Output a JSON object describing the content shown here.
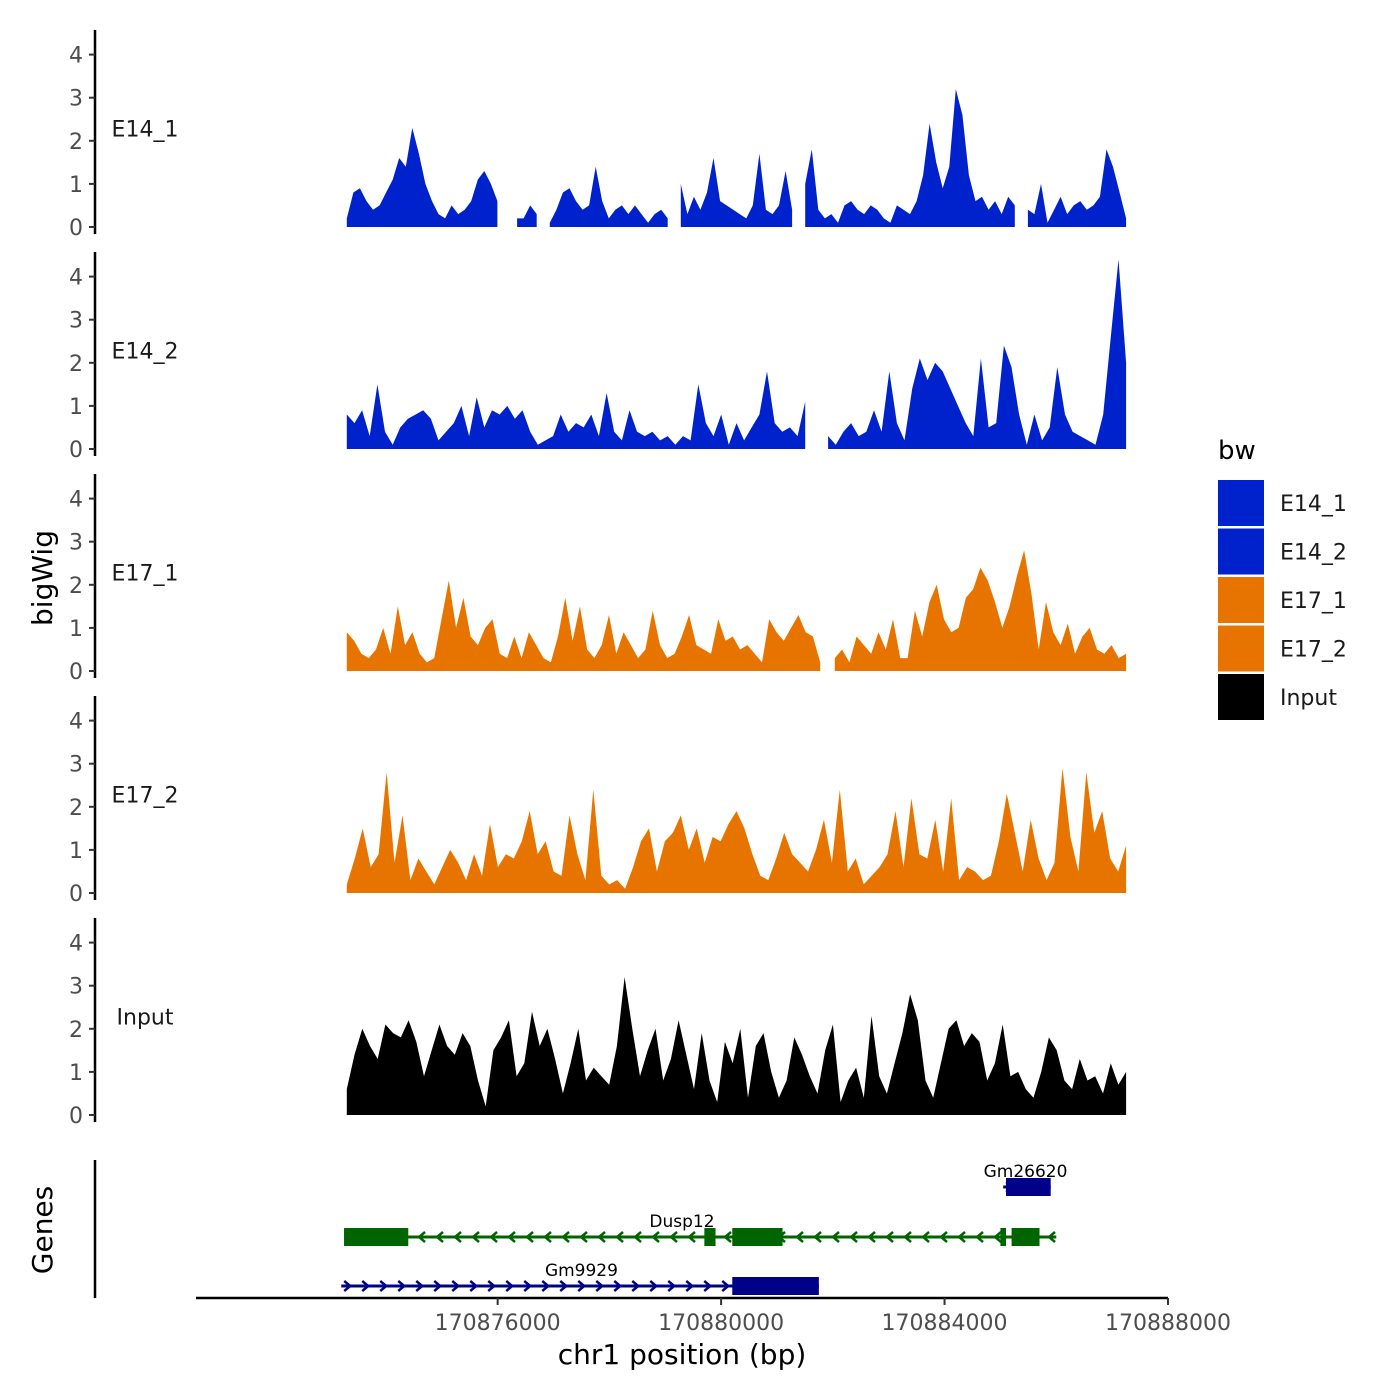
{
  "chart_data": {
    "type": "area",
    "title": "",
    "xlabel": "chr1 position (bp)",
    "ylabel": "bigWig",
    "genes_label": "Genes",
    "xlim": [
      170870600,
      170888000
    ],
    "ylim": [
      0,
      4.5
    ],
    "x_ticks": [
      170876000,
      170880000,
      170884000,
      170888000
    ],
    "x_tick_labels": [
      "170876000",
      "170880000",
      "170884000",
      "170888000"
    ],
    "y_ticks": [
      0,
      1,
      2,
      3,
      4
    ],
    "y_tick_labels": [
      "0",
      "1",
      "2",
      "3",
      "4"
    ],
    "x_start": 170873300,
    "x_end": 170887250,
    "legend": {
      "title": "bw",
      "position": "right",
      "entries": [
        {
          "label": "E14_1",
          "color": "#0022CC"
        },
        {
          "label": "E14_2",
          "color": "#0022CC"
        },
        {
          "label": "E17_1",
          "color": "#E87400"
        },
        {
          "label": "E17_2",
          "color": "#E87400"
        },
        {
          "label": "Input",
          "color": "#000000"
        }
      ]
    },
    "series": [
      {
        "name": "E14_1",
        "color": "#0022CC",
        "values": [
          0.2,
          0.8,
          0.9,
          0.6,
          0.4,
          0.5,
          0.8,
          1.1,
          1.6,
          1.4,
          2.3,
          1.7,
          1.0,
          0.6,
          0.3,
          0.2,
          0.5,
          0.3,
          0.4,
          0.6,
          1.1,
          1.3,
          1.0,
          0.6,
          null,
          null,
          0.2,
          0.2,
          0.5,
          0.3,
          null,
          0.1,
          0.4,
          0.8,
          0.9,
          0.6,
          0.4,
          0.5,
          1.4,
          0.6,
          0.2,
          0.4,
          0.5,
          0.3,
          0.5,
          0.3,
          0.1,
          0.3,
          0.4,
          0.2,
          null,
          1.0,
          0.3,
          0.7,
          0.4,
          0.8,
          1.6,
          0.6,
          0.5,
          0.4,
          0.3,
          0.2,
          0.5,
          1.7,
          0.4,
          0.3,
          0.5,
          1.3,
          0.4,
          null,
          1.0,
          1.8,
          0.4,
          0.2,
          0.3,
          0.1,
          0.5,
          0.6,
          0.4,
          0.3,
          0.5,
          0.4,
          0.2,
          0.1,
          0.5,
          0.4,
          0.3,
          0.6,
          1.2,
          2.4,
          1.5,
          0.9,
          1.4,
          3.2,
          2.6,
          1.2,
          0.6,
          0.7,
          0.4,
          0.6,
          0.3,
          0.7,
          0.5,
          null,
          0.4,
          0.3,
          1.0,
          0.1,
          0.4,
          0.7,
          0.3,
          0.5,
          0.6,
          0.4,
          0.5,
          0.7,
          1.8,
          1.4,
          0.8,
          0.2
        ]
      },
      {
        "name": "E14_2",
        "color": "#0022CC",
        "values": [
          0.8,
          0.6,
          0.9,
          0.3,
          1.5,
          0.4,
          0.1,
          0.5,
          0.7,
          0.8,
          0.9,
          0.7,
          0.2,
          0.4,
          0.6,
          1.0,
          0.3,
          1.2,
          0.5,
          0.9,
          0.8,
          1.0,
          0.7,
          0.9,
          0.4,
          0.1,
          0.2,
          0.3,
          0.8,
          0.4,
          0.6,
          0.5,
          0.8,
          0.3,
          1.3,
          0.4,
          0.2,
          0.9,
          0.4,
          0.3,
          0.4,
          0.2,
          0.3,
          0.1,
          0.3,
          0.2,
          1.5,
          0.6,
          0.3,
          0.8,
          0.1,
          0.6,
          0.2,
          0.5,
          0.8,
          1.8,
          0.6,
          0.4,
          0.5,
          0.3,
          1.1,
          null,
          null,
          0.3,
          0.1,
          0.4,
          0.6,
          0.3,
          0.4,
          0.9,
          0.4,
          1.8,
          0.6,
          0.2,
          1.4,
          2.1,
          1.6,
          2.0,
          1.8,
          1.4,
          1.0,
          0.6,
          0.3,
          2.1,
          0.5,
          0.6,
          2.4,
          1.9,
          0.8,
          0.1,
          0.8,
          0.2,
          0.5,
          1.9,
          0.8,
          0.4,
          0.3,
          0.2,
          0.1,
          0.8,
          2.6,
          4.4,
          2.0
        ]
      },
      {
        "name": "E17_1",
        "color": "#E87400",
        "values": [
          0.9,
          0.7,
          0.4,
          0.3,
          0.5,
          1.0,
          0.4,
          1.5,
          0.6,
          0.9,
          0.4,
          0.2,
          0.3,
          1.2,
          2.1,
          1.0,
          1.7,
          0.8,
          0.6,
          1.0,
          1.2,
          0.4,
          0.3,
          0.8,
          0.3,
          0.9,
          0.6,
          0.3,
          0.2,
          0.8,
          1.7,
          0.7,
          1.5,
          0.5,
          0.3,
          0.6,
          1.3,
          0.4,
          0.9,
          0.6,
          0.3,
          0.5,
          1.4,
          0.6,
          0.3,
          0.4,
          0.8,
          1.3,
          0.6,
          0.5,
          0.4,
          1.2,
          0.7,
          0.8,
          0.5,
          0.6,
          0.4,
          0.2,
          1.2,
          0.9,
          0.7,
          1.0,
          1.3,
          0.9,
          0.8,
          0.2,
          null,
          0.3,
          0.5,
          0.2,
          0.8,
          0.6,
          0.4,
          0.9,
          0.5,
          1.2,
          0.3,
          0.3,
          1.4,
          0.8,
          1.6,
          2.0,
          1.2,
          0.9,
          1.0,
          1.7,
          1.9,
          2.4,
          2.1,
          1.6,
          1.0,
          1.5,
          2.2,
          2.8,
          1.8,
          0.5,
          1.6,
          0.9,
          0.6,
          1.1,
          0.4,
          0.8,
          1.0,
          0.5,
          0.4,
          0.6,
          0.3,
          0.4
        ]
      },
      {
        "name": "E17_2",
        "color": "#E87400",
        "values": [
          0.2,
          0.8,
          1.5,
          0.6,
          0.9,
          2.8,
          0.7,
          1.8,
          0.3,
          0.8,
          0.5,
          0.2,
          0.6,
          1.0,
          0.7,
          0.3,
          0.9,
          0.4,
          1.6,
          0.6,
          0.9,
          0.8,
          1.2,
          1.9,
          0.9,
          1.2,
          0.5,
          0.4,
          1.8,
          0.9,
          0.3,
          2.4,
          0.4,
          0.2,
          0.3,
          0.1,
          0.6,
          1.2,
          1.5,
          0.5,
          1.2,
          1.4,
          1.8,
          1.0,
          1.5,
          0.7,
          1.3,
          1.2,
          1.6,
          1.9,
          1.5,
          0.9,
          0.4,
          0.3,
          0.8,
          1.4,
          0.9,
          0.7,
          0.5,
          1.0,
          1.7,
          0.7,
          2.4,
          0.5,
          0.8,
          0.2,
          0.4,
          0.6,
          0.9,
          1.9,
          0.6,
          2.2,
          0.9,
          0.8,
          1.7,
          0.5,
          2.2,
          0.3,
          0.6,
          0.5,
          0.3,
          0.4,
          1.2,
          2.3,
          1.4,
          0.5,
          1.7,
          0.8,
          0.3,
          0.7,
          2.9,
          1.3,
          0.5,
          2.8,
          1.4,
          1.9,
          0.8,
          0.5,
          1.1
        ]
      },
      {
        "name": "Input",
        "color": "#000000",
        "values": [
          0.6,
          1.4,
          2.0,
          1.6,
          1.3,
          2.1,
          1.9,
          1.8,
          2.2,
          1.7,
          0.9,
          1.5,
          2.1,
          1.6,
          1.4,
          1.9,
          1.6,
          0.8,
          0.2,
          1.5,
          1.8,
          2.2,
          0.9,
          1.2,
          2.4,
          1.6,
          2.0,
          1.3,
          0.5,
          1.2,
          2.0,
          0.8,
          1.1,
          0.9,
          0.7,
          1.6,
          3.2,
          2.0,
          0.9,
          1.5,
          2.0,
          0.8,
          1.3,
          2.2,
          1.4,
          0.6,
          1.9,
          0.8,
          0.3,
          1.7,
          1.2,
          2.0,
          0.4,
          1.6,
          1.9,
          1.0,
          0.4,
          0.8,
          1.8,
          1.4,
          0.9,
          0.5,
          1.5,
          2.1,
          0.3,
          0.8,
          1.1,
          0.4,
          2.3,
          0.9,
          0.5,
          1.2,
          1.9,
          2.8,
          2.2,
          0.8,
          0.4,
          1.2,
          2.0,
          2.2,
          1.6,
          1.9,
          1.7,
          0.8,
          1.2,
          2.1,
          0.9,
          1.0,
          0.6,
          0.4,
          1.0,
          1.8,
          1.5,
          0.8,
          0.6,
          1.3,
          0.8,
          0.9,
          0.5,
          1.2,
          0.7,
          1.0
        ]
      }
    ],
    "genes": [
      {
        "name": "Gm26620",
        "strand": "+",
        "color": "#00008B",
        "row": 0,
        "start": 170885050,
        "end": 170885900,
        "exons": [
          {
            "start": 170885100,
            "end": 170885900
          }
        ]
      },
      {
        "name": "Dusp12",
        "strand": "-",
        "color": "#006400",
        "row": 1,
        "start": 170873250,
        "end": 170886000,
        "exons": [
          {
            "start": 170873250,
            "end": 170874400
          },
          {
            "start": 170879700,
            "end": 170879900
          },
          {
            "start": 170880200,
            "end": 170881100
          },
          {
            "start": 170885000,
            "end": 170885100
          },
          {
            "start": 170885200,
            "end": 170885700
          }
        ]
      },
      {
        "name": "Gm9929",
        "strand": "+",
        "color": "#00008B",
        "row": 2,
        "start": 170873200,
        "end": 170881750,
        "exons": [
          {
            "start": 170880200,
            "end": 170881750
          }
        ]
      }
    ]
  }
}
